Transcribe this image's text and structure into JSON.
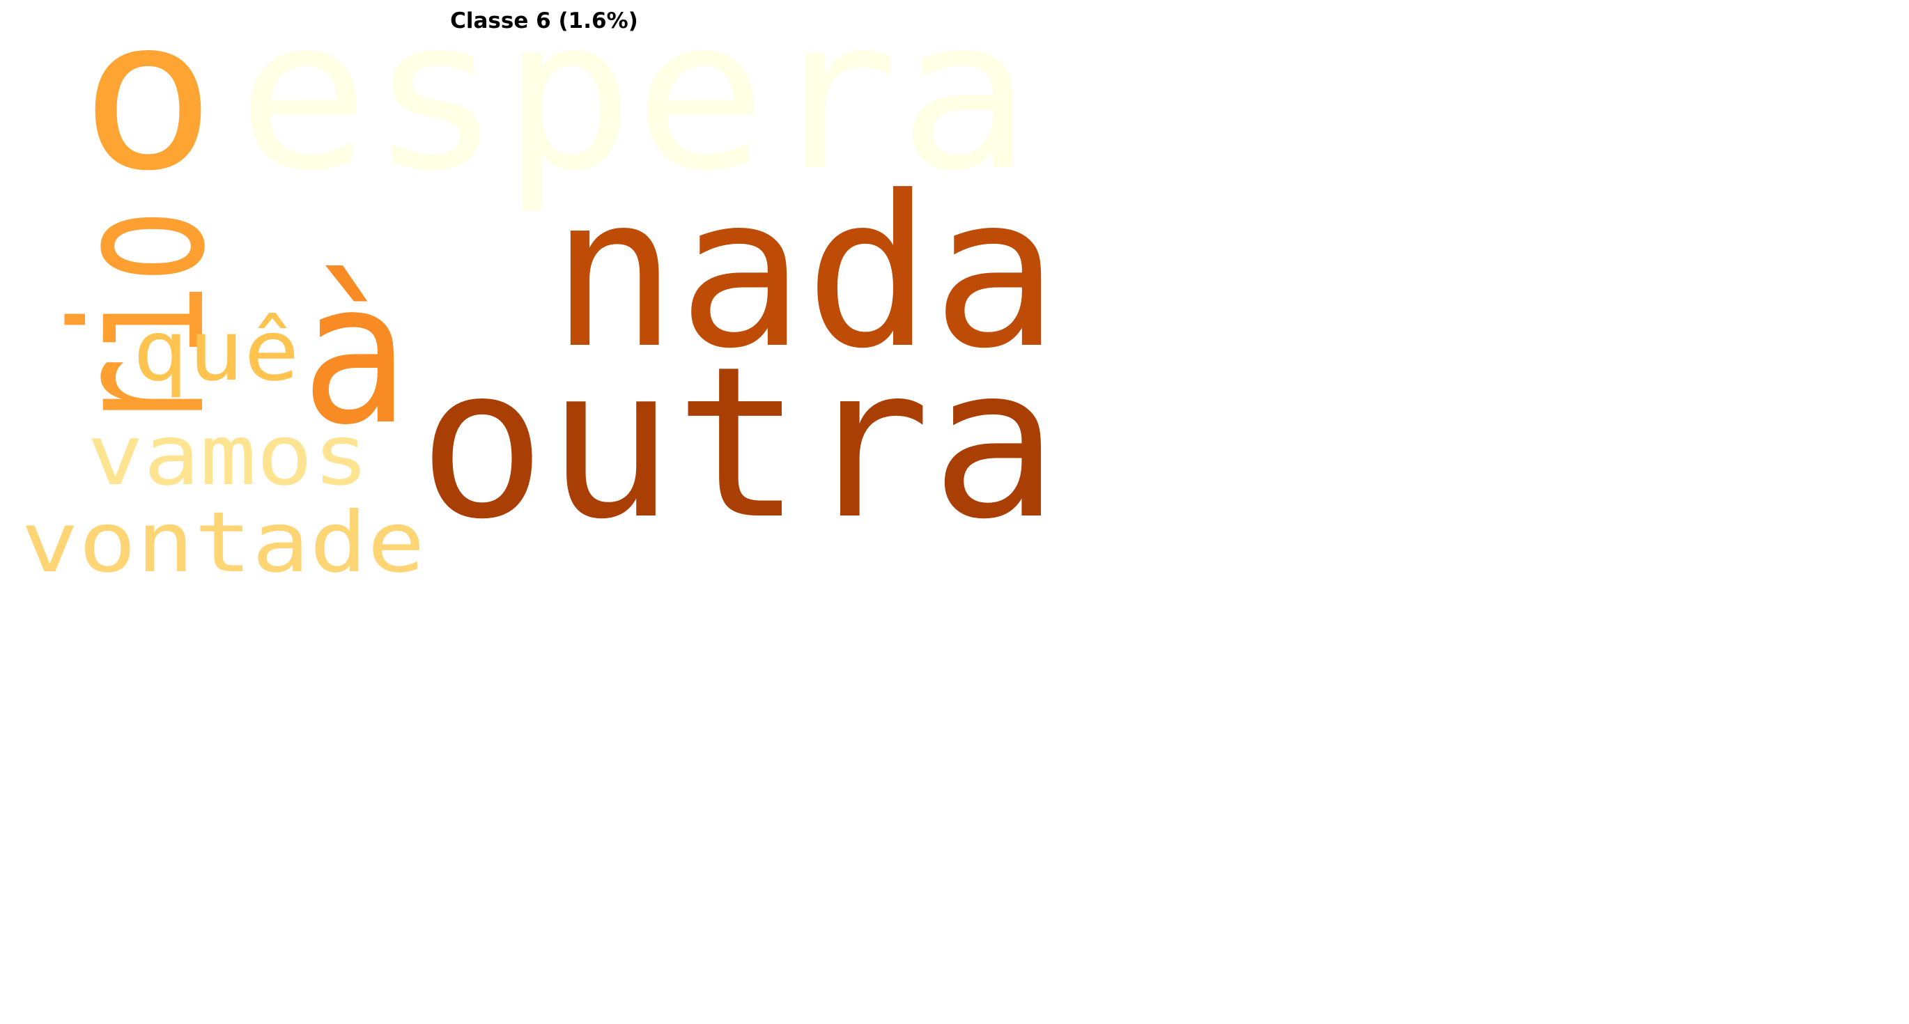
{
  "chart_data": {
    "type": "wordcloud",
    "title": "Classe 6 (1.6%)",
    "words": [
      {
        "text": "espera",
        "color": "#ffffe5"
      },
      {
        "text": "o",
        "color": "#fea433"
      },
      {
        "text": "rio",
        "color": "#fe9f31"
      },
      {
        "text": "nada",
        "color": "#be4b06"
      },
      {
        "text": "à",
        "color": "#f88b23"
      },
      {
        "text": "outra",
        "color": "#a93f04"
      },
      {
        "text": "quê",
        "color": "#fec44f"
      },
      {
        "text": "vamos",
        "color": "#fee491"
      },
      {
        "text": "vontade",
        "color": "#fed575"
      }
    ]
  }
}
